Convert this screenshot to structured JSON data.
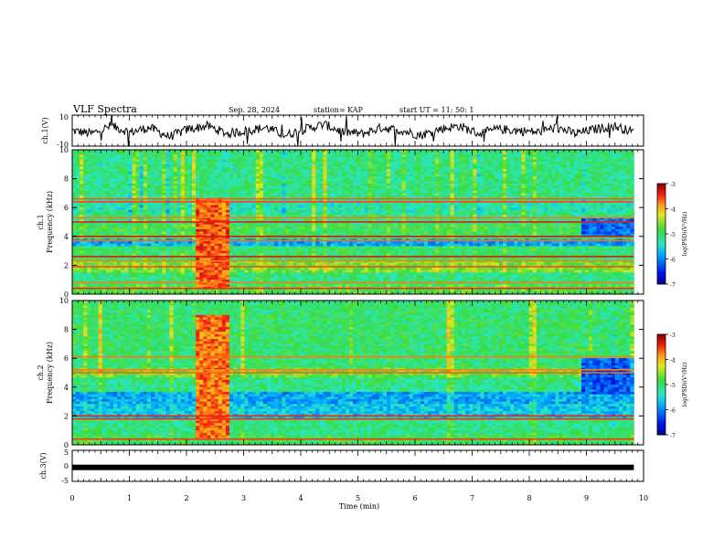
{
  "header": {
    "title": "VLF Spectra",
    "date": "Sep. 28, 2024",
    "station": "station= KAP",
    "start": "start UT =  11: 50: 1"
  },
  "panels": {
    "waveform1": {
      "ylabel": "ch.1(V)",
      "ytick_top": "10",
      "ytick_bottom": "-10"
    },
    "spec1": {
      "ylabel_line1": "ch.1",
      "ylabel_line2": "Frequency (kHz)"
    },
    "spec2": {
      "ylabel_line1": "ch.2",
      "ylabel_line2": "Frequency (kHz)"
    },
    "waveform3": {
      "ylabel": "ch.3(V)",
      "ytick_top": "5",
      "ytick_mid": "0",
      "ytick_bottom": "-5"
    }
  },
  "colorbar": {
    "label": "log(PSD)(V²/Hz)",
    "ticks": [
      "-3",
      "-4",
      "-5",
      "-6",
      "-7"
    ]
  },
  "colors": {
    "green": "#33dd33",
    "cyan": "#22d8d8",
    "blue": "#1a2dd8",
    "red": "#e82020",
    "yellow": "#f2e21a",
    "orange": "#ff9a1a"
  },
  "chart_data": [
    {
      "type": "line",
      "title": "VLF Spectra",
      "ylabel": "ch.1(V)",
      "xlabel": "",
      "xlim": [
        0,
        10
      ],
      "ylim": [
        -10,
        10
      ],
      "data_end_min": 9.83,
      "series": [
        {
          "values": [
            0,
            -2,
            3,
            -1,
            2,
            -4,
            1,
            3,
            -2,
            0,
            2,
            -3,
            1,
            4,
            -1,
            -2,
            2,
            0,
            -3,
            1,
            3,
            -2,
            1,
            0,
            -1,
            2,
            -2,
            1,
            3,
            -1
          ]
        }
      ]
    },
    {
      "type": "heatmap",
      "ylabel": "Frequency (kHz)",
      "xlim": [
        0,
        10
      ],
      "ylim": [
        0,
        10
      ],
      "zlabel": "log(PSD)(V²/Hz)",
      "zlim": [
        -7,
        -3
      ],
      "bands": [
        {
          "f_lo": 0.0,
          "f_hi": 0.6,
          "level": -4.8
        },
        {
          "f_lo": 0.6,
          "f_hi": 1.5,
          "level": -5.1
        },
        {
          "f_lo": 1.5,
          "f_hi": 2.3,
          "level": -4.6
        },
        {
          "f_lo": 2.3,
          "f_hi": 3.3,
          "level": -5.0
        },
        {
          "f_lo": 3.3,
          "f_hi": 3.9,
          "level": -5.8
        },
        {
          "f_lo": 3.9,
          "f_hi": 4.9,
          "level": -4.9
        },
        {
          "f_lo": 4.9,
          "f_hi": 5.7,
          "level": -5.1
        },
        {
          "f_lo": 5.7,
          "f_hi": 6.5,
          "level": -5.3
        },
        {
          "f_lo": 6.5,
          "f_hi": 10.0,
          "level": -5.1
        }
      ],
      "lines_khz": [
        0.4,
        0.8,
        1.9,
        2.3,
        2.6,
        3.7,
        4.0,
        5.0,
        5.3,
        6.4,
        6.6
      ],
      "event": {
        "t_start": 2.15,
        "t_end": 2.75,
        "f_lo": 0.3,
        "f_hi": 6.6,
        "level": -3.6
      },
      "late_quiet": {
        "t_start": 8.9,
        "t_end": 9.83,
        "f_lo": 4.0,
        "f_hi": 5.3,
        "level": -6.1
      }
    },
    {
      "type": "heatmap",
      "ylabel": "Frequency (kHz)",
      "xlim": [
        0,
        10
      ],
      "ylim": [
        0,
        10
      ],
      "zlabel": "log(PSD)(V²/Hz)",
      "zlim": [
        -7,
        -3
      ],
      "bands": [
        {
          "f_lo": 0.0,
          "f_hi": 0.6,
          "level": -4.9
        },
        {
          "f_lo": 0.6,
          "f_hi": 1.8,
          "level": -5.1
        },
        {
          "f_lo": 1.8,
          "f_hi": 2.8,
          "level": -5.6
        },
        {
          "f_lo": 2.8,
          "f_hi": 3.6,
          "level": -5.8
        },
        {
          "f_lo": 3.6,
          "f_hi": 4.6,
          "level": -5.1
        },
        {
          "f_lo": 4.6,
          "f_hi": 5.4,
          "level": -4.7
        },
        {
          "f_lo": 5.4,
          "f_hi": 10.0,
          "level": -5.0
        }
      ],
      "lines_khz": [
        0.4,
        1.8,
        2.0,
        5.0,
        5.2,
        6.1
      ],
      "event": {
        "t_start": 2.15,
        "t_end": 2.75,
        "f_lo": 0.3,
        "f_hi": 9.0,
        "level": -3.7
      },
      "late_quiet": {
        "t_start": 8.9,
        "t_end": 9.83,
        "f_lo": 3.5,
        "f_hi": 6.0,
        "level": -6.2
      }
    },
    {
      "type": "line",
      "ylabel": "ch.3(V)",
      "xlabel": "Time (min)",
      "xlim": [
        0,
        10
      ],
      "ylim": [
        -5,
        5
      ],
      "data_end_min": 9.83,
      "series": [
        {
          "values": [
            -0.5,
            -0.5
          ]
        }
      ],
      "x_ticks": [
        "0",
        "1",
        "2",
        "3",
        "4",
        "5",
        "6",
        "7",
        "8",
        "9",
        "10"
      ]
    }
  ]
}
